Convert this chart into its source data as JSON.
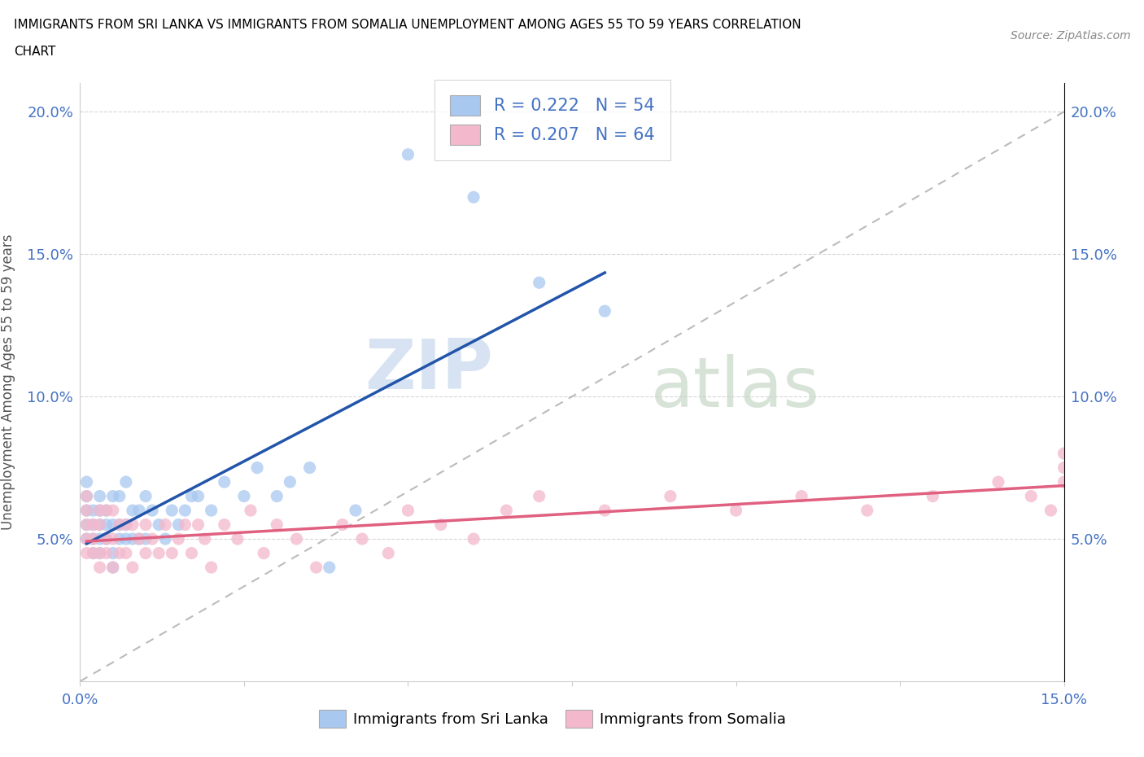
{
  "title_line1": "IMMIGRANTS FROM SRI LANKA VS IMMIGRANTS FROM SOMALIA UNEMPLOYMENT AMONG AGES 55 TO 59 YEARS CORRELATION",
  "title_line2": "CHART",
  "source": "Source: ZipAtlas.com",
  "ylabel": "Unemployment Among Ages 55 to 59 years",
  "xlim": [
    0.0,
    0.15
  ],
  "ylim": [
    0.0,
    0.21
  ],
  "x_ticks": [
    0.0,
    0.025,
    0.05,
    0.075,
    0.1,
    0.125,
    0.15
  ],
  "y_ticks": [
    0.0,
    0.05,
    0.1,
    0.15,
    0.2
  ],
  "watermark_zip": "ZIP",
  "watermark_atlas": "atlas",
  "sri_lanka_color": "#a8c8f0",
  "somalia_color": "#f4b8cc",
  "sri_lanka_line_color": "#2255aa",
  "somalia_line_color": "#e06080",
  "diagonal_line_color": "#aaaaaa",
  "legend_label_sri": "R = 0.222   N = 54",
  "legend_label_som": "R = 0.207   N = 64",
  "sri_lanka_x": [
    0.001,
    0.001,
    0.001,
    0.001,
    0.001,
    0.002,
    0.002,
    0.002,
    0.002,
    0.003,
    0.003,
    0.003,
    0.003,
    0.003,
    0.004,
    0.004,
    0.004,
    0.005,
    0.005,
    0.005,
    0.005,
    0.006,
    0.006,
    0.006,
    0.007,
    0.007,
    0.007,
    0.008,
    0.008,
    0.009,
    0.009,
    0.01,
    0.01,
    0.011,
    0.012,
    0.013,
    0.014,
    0.015,
    0.016,
    0.017,
    0.018,
    0.02,
    0.022,
    0.025,
    0.027,
    0.03,
    0.032,
    0.035,
    0.038,
    0.042,
    0.05,
    0.06,
    0.07,
    0.08
  ],
  "sri_lanka_y": [
    0.05,
    0.055,
    0.06,
    0.065,
    0.07,
    0.045,
    0.05,
    0.055,
    0.06,
    0.045,
    0.05,
    0.055,
    0.06,
    0.065,
    0.05,
    0.055,
    0.06,
    0.04,
    0.045,
    0.055,
    0.065,
    0.05,
    0.055,
    0.065,
    0.05,
    0.055,
    0.07,
    0.05,
    0.06,
    0.05,
    0.06,
    0.05,
    0.065,
    0.06,
    0.055,
    0.05,
    0.06,
    0.055,
    0.06,
    0.065,
    0.065,
    0.06,
    0.07,
    0.065,
    0.075,
    0.065,
    0.07,
    0.075,
    0.04,
    0.06,
    0.185,
    0.17,
    0.14,
    0.13
  ],
  "somalia_x": [
    0.001,
    0.001,
    0.001,
    0.001,
    0.001,
    0.002,
    0.002,
    0.002,
    0.003,
    0.003,
    0.003,
    0.003,
    0.004,
    0.004,
    0.004,
    0.005,
    0.005,
    0.005,
    0.006,
    0.006,
    0.007,
    0.007,
    0.008,
    0.008,
    0.009,
    0.01,
    0.01,
    0.011,
    0.012,
    0.013,
    0.014,
    0.015,
    0.016,
    0.017,
    0.018,
    0.019,
    0.02,
    0.022,
    0.024,
    0.026,
    0.028,
    0.03,
    0.033,
    0.036,
    0.04,
    0.043,
    0.047,
    0.05,
    0.055,
    0.06,
    0.065,
    0.07,
    0.08,
    0.09,
    0.1,
    0.11,
    0.12,
    0.13,
    0.14,
    0.145,
    0.148,
    0.15,
    0.15,
    0.15
  ],
  "somalia_y": [
    0.045,
    0.05,
    0.055,
    0.06,
    0.065,
    0.045,
    0.05,
    0.055,
    0.04,
    0.045,
    0.055,
    0.06,
    0.045,
    0.05,
    0.06,
    0.04,
    0.05,
    0.06,
    0.045,
    0.055,
    0.045,
    0.055,
    0.04,
    0.055,
    0.05,
    0.045,
    0.055,
    0.05,
    0.045,
    0.055,
    0.045,
    0.05,
    0.055,
    0.045,
    0.055,
    0.05,
    0.04,
    0.055,
    0.05,
    0.06,
    0.045,
    0.055,
    0.05,
    0.04,
    0.055,
    0.05,
    0.045,
    0.06,
    0.055,
    0.05,
    0.06,
    0.065,
    0.06,
    0.065,
    0.06,
    0.065,
    0.06,
    0.065,
    0.07,
    0.065,
    0.06,
    0.075,
    0.07,
    0.08
  ]
}
